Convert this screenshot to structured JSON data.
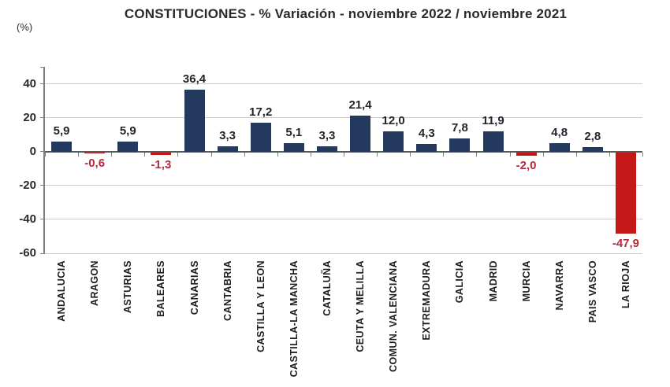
{
  "chart_data": {
    "type": "bar",
    "title": "CONSTITUCIONES - % Variación - noviembre 2022 / noviembre 2021",
    "unit": "(%)",
    "categories": [
      "ANDALUCIA",
      "ARAGON",
      "ASTURIAS",
      "BALEARES",
      "CANARIAS",
      "CANTABRIA",
      "CASTILLA Y LEON",
      "CASTILLA-LA MANCHA",
      "CATALUÑA",
      "CEUTA Y MELILLA",
      "COMUN. VALENCIANA",
      "EXTREMADURA",
      "GALICIA",
      "MADRID",
      "MURCIA",
      "NAVARRA",
      "PAIS VASCO",
      "LA RIOJA"
    ],
    "values": [
      5.9,
      -0.6,
      5.9,
      -1.3,
      36.4,
      3.3,
      17.2,
      5.1,
      3.3,
      21.4,
      12.0,
      4.3,
      7.8,
      11.9,
      -2.0,
      4.8,
      2.8,
      -47.9
    ],
    "value_labels": [
      "5,9",
      "-0,6",
      "5,9",
      "-1,3",
      "36,4",
      "3,3",
      "17,2",
      "5,1",
      "3,3",
      "21,4",
      "12,0",
      "4,3",
      "7,8",
      "11,9",
      "-2,0",
      "4,8",
      "2,8",
      "-47,9"
    ],
    "y_ticks": [
      40,
      20,
      0,
      -20,
      -40,
      -60
    ],
    "y_tick_labels": [
      "40",
      "20",
      "0",
      "-20",
      "-40",
      "-60"
    ],
    "ylim": [
      -60,
      50
    ],
    "grid": true,
    "legend": "none",
    "colors": {
      "positive_bar": "#24395E",
      "negative_bar": "#C41818",
      "positive_label": "#23242B",
      "negative_label": "#B52B3B",
      "gridline": "#CCCCCC",
      "baseline": "#58595B",
      "axis": "#7F7F7F"
    }
  }
}
